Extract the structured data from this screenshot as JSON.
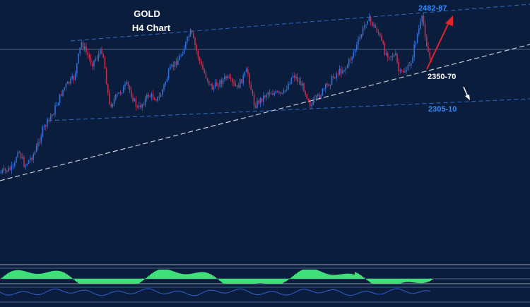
{
  "colors": {
    "background": "#0b1d3d",
    "bull_candle": "#2f6fd6",
    "bear_candle": "#c0304f",
    "channel_line": "#2c6cc4",
    "trend_line": "#c9ced8",
    "level_label": "#2f8cff",
    "white_label": "#ffffff",
    "red_arrow": "#e0252b",
    "histogram_green": "#3ee07a",
    "oscillator_blue": "#2f5fd0"
  },
  "chart_data": {
    "type": "candlestick",
    "title": "GOLD",
    "subtitle": "H4 Chart",
    "annotations": [
      {
        "label": "2482-87",
        "kind": "resistance",
        "color": "blue"
      },
      {
        "label": "2350-70",
        "kind": "support",
        "color": "white"
      },
      {
        "label": "2305-10",
        "kind": "target",
        "color": "blue"
      }
    ],
    "indicators": [
      "histogram",
      "oscillator"
    ],
    "grid": false
  }
}
